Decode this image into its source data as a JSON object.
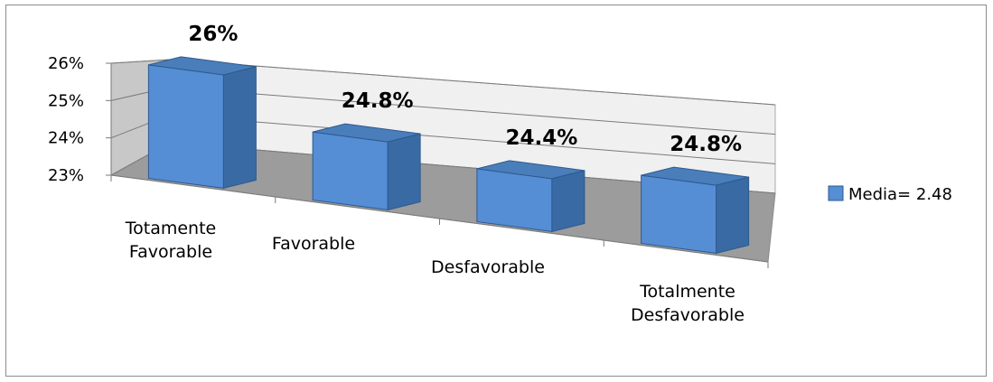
{
  "chart_data": {
    "type": "bar",
    "style": "3d-column",
    "categories": [
      "Totamente Favorable",
      "Favorable",
      "Desfavorable",
      "Totalmente Desfavorable"
    ],
    "series": [
      {
        "name": "Media= 2.48",
        "values": [
          26,
          24.8,
          24.4,
          24.8
        ],
        "color": "#4f81bd"
      }
    ],
    "data_labels": [
      "26%",
      "24.8%",
      "24.4%",
      "24.8%"
    ],
    "yticks": [
      "23%",
      "24%",
      "25%",
      "26%"
    ],
    "ylim": [
      23,
      26
    ],
    "title": "",
    "xlabel": "",
    "ylabel": "",
    "grid": true,
    "legend_position": "right"
  }
}
